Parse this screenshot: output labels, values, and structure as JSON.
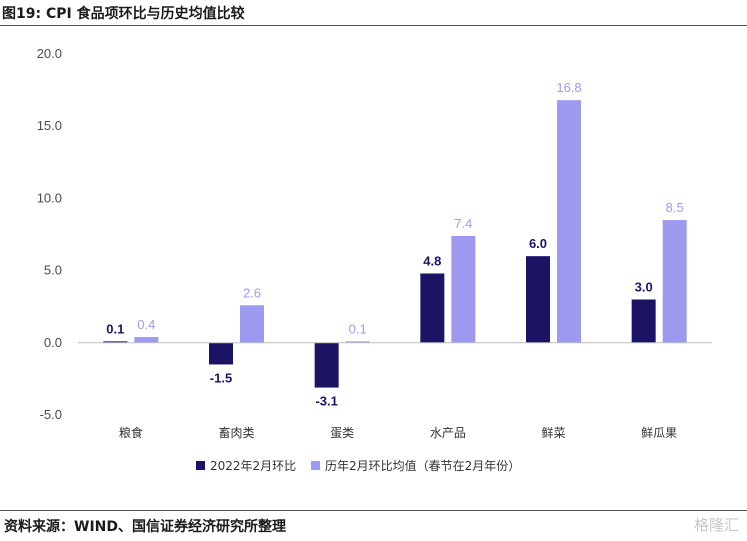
{
  "title": "图19: CPI 食品项环比与历史均值比较",
  "source": "资料来源：WIND、国信证券经济研究所整理",
  "watermark": "格隆汇",
  "colors": {
    "series1": "#1b1464",
    "series2": "#9e9af0",
    "label1": "#1b1464",
    "label2": "#9e9af0"
  },
  "chart_data": {
    "type": "bar",
    "categories": [
      "粮食",
      "畜肉类",
      "蛋类",
      "水产品",
      "鲜菜",
      "鲜瓜果"
    ],
    "series": [
      {
        "name": "2022年2月环比",
        "values": [
          0.1,
          -1.5,
          -3.1,
          4.8,
          6.0,
          3.0
        ]
      },
      {
        "name": "历年2月环比均值（春节在2月年份）",
        "values": [
          0.4,
          2.6,
          0.1,
          7.4,
          16.8,
          8.5
        ]
      }
    ],
    "y_ticks": [
      "20.0",
      "15.0",
      "10.0",
      "5.0",
      "0.0",
      "-5.0"
    ],
    "ylim": [
      -5,
      20
    ],
    "legend_position": "bottom",
    "grid": false
  }
}
